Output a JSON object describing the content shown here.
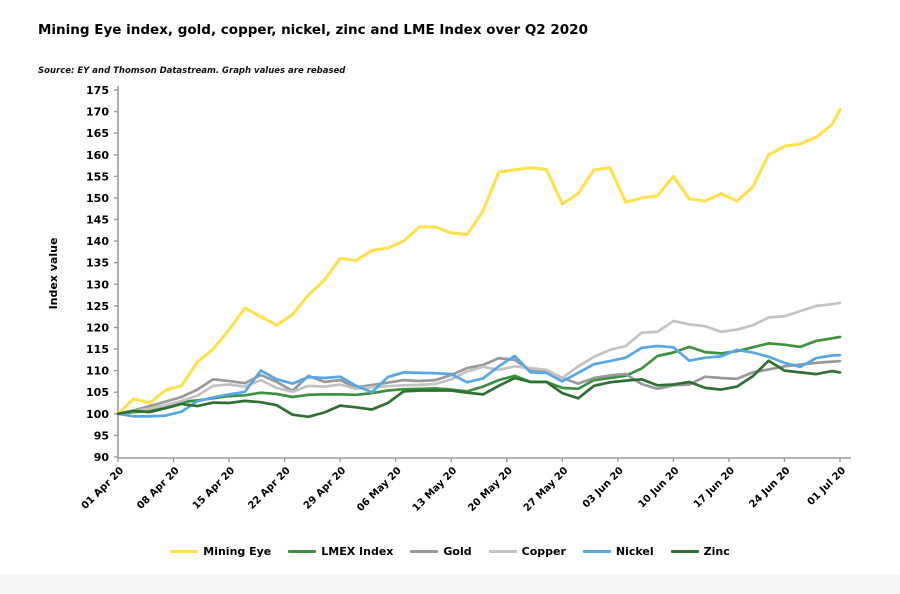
{
  "page": {
    "title": "Mining Eye index, gold, copper, nickel, zinc and LME Index over Q2 2020",
    "source": "Source: EY and Thomson Datastream. Graph values are rebased"
  },
  "chart_data": {
    "type": "line",
    "title": "Mining Eye index, gold, copper, nickel, zinc and LME Index over Q2 2020",
    "xlabel": "",
    "ylabel": "Index value",
    "ylim": [
      90,
      175
    ],
    "ytick_step": 5,
    "grid": false,
    "legend_position": "bottom",
    "axis_color": "#9b9b9b",
    "x_unit": "days since 01 Apr 20",
    "x": [
      0,
      2,
      4,
      6,
      8,
      10,
      12,
      14,
      16,
      18,
      20,
      22,
      24,
      26,
      28,
      30,
      32,
      34,
      36,
      38,
      40,
      42,
      44,
      46,
      48,
      50,
      52,
      54,
      56,
      58,
      60,
      62,
      64,
      66,
      68,
      70,
      72,
      74,
      76,
      78,
      80,
      82,
      84,
      86,
      88,
      90,
      91
    ],
    "xtick_days": [
      0,
      7,
      14,
      21,
      28,
      35,
      42,
      49,
      56,
      63,
      70,
      77,
      84,
      91
    ],
    "xtick_labels": [
      "01 Apr 20",
      "08 Apr 20",
      "15 Apr 20",
      "22 Apr 20",
      "29 Apr 20",
      "06 May 20",
      "13 May 20",
      "20 May 20",
      "27 May 20",
      "03 Jun 20",
      "10 Jun 20",
      "17 Jun 20",
      "24 Jun 20",
      "01 Jul 20"
    ],
    "series": [
      {
        "name": "Mining Eye",
        "color": "#ffe14d",
        "values": [
          100,
          103.5,
          102.5,
          105.5,
          106.5,
          112,
          115,
          119.5,
          124.5,
          122.5,
          120.5,
          123,
          127.5,
          131,
          136,
          135.5,
          137.8,
          138.4,
          140,
          143.3,
          143.3,
          141.9,
          141.5,
          147,
          156,
          156.5,
          157,
          156.6,
          148.6,
          151,
          156.5,
          157,
          149,
          150,
          150.5,
          155,
          149.8,
          149.3,
          151,
          149.3,
          152.5,
          160,
          162,
          162.5,
          164.1,
          167,
          170.5
        ]
      },
      {
        "name": "LMEX Index",
        "color": "#3f9142",
        "values": [
          100,
          100.4,
          100.6,
          101.5,
          102.7,
          103.1,
          103.6,
          104.1,
          104.3,
          104.9,
          104.6,
          103.9,
          104.4,
          104.5,
          104.5,
          104.4,
          104.8,
          105.4,
          105.7,
          105.8,
          105.9,
          105.6,
          105.2,
          106.3,
          107.8,
          108.8,
          107.4,
          107.4,
          106,
          105.8,
          107.8,
          108.3,
          108.8,
          110.5,
          113.4,
          114.2,
          115.5,
          114.3,
          114,
          114.5,
          115.4,
          116.3,
          116,
          115.5,
          116.9,
          117.5,
          117.8
        ]
      },
      {
        "name": "Gold",
        "color": "#999999",
        "values": [
          100,
          100.8,
          101.8,
          102.8,
          103.9,
          105.6,
          108,
          107.6,
          107.1,
          109,
          107.4,
          105.3,
          108.8,
          107.4,
          107.8,
          106.1,
          106.7,
          107.2,
          107.8,
          107.6,
          107.8,
          109,
          110.6,
          111.3,
          112.9,
          112.5,
          110,
          110.1,
          108.3,
          107,
          108.3,
          108.9,
          109.2,
          106.9,
          105.8,
          106.6,
          106.8,
          108.6,
          108.3,
          108.1,
          109.6,
          110.3,
          111,
          111.4,
          111.8,
          112.1,
          112.2
        ]
      },
      {
        "name": "Copper",
        "color": "#c3c3c3",
        "values": [
          100,
          100.6,
          101.2,
          102,
          103,
          104.2,
          106.5,
          106.8,
          106.3,
          107.8,
          106,
          105.1,
          106.5,
          106.3,
          106.8,
          105.8,
          106.2,
          106.4,
          106.6,
          106.7,
          106.9,
          108,
          109.8,
          110.9,
          110.2,
          111,
          110.6,
          110.2,
          108.3,
          111,
          113.2,
          114.8,
          115.7,
          118.8,
          119,
          121.5,
          120.7,
          120.3,
          119,
          119.5,
          120.5,
          122.3,
          122.6,
          123.8,
          125,
          125.4,
          125.7
        ]
      },
      {
        "name": "Nickel",
        "color": "#55a7e8",
        "values": [
          100,
          99.4,
          99.4,
          99.6,
          100.5,
          102.9,
          103.8,
          104.5,
          105.1,
          110,
          108,
          107,
          108.5,
          108.3,
          108.6,
          106.5,
          105,
          108.5,
          109.6,
          109.5,
          109.4,
          109.2,
          107.3,
          108.2,
          111,
          113.4,
          109.6,
          109.5,
          107.5,
          109.5,
          111.5,
          112.2,
          113,
          115.3,
          115.7,
          115.4,
          112.3,
          113,
          113.3,
          114.8,
          114.2,
          113.2,
          111.8,
          110.9,
          112.9,
          113.5,
          113.6
        ]
      },
      {
        "name": "Zinc",
        "color": "#2e7031",
        "values": [
          100,
          100.7,
          100.4,
          101.3,
          102.3,
          101.8,
          102.6,
          102.5,
          103,
          102.7,
          102,
          99.8,
          99.3,
          100.3,
          101.9,
          101.5,
          101,
          102.5,
          105.2,
          105.4,
          105.4,
          105.4,
          104.9,
          104.5,
          106.5,
          108.3,
          107.4,
          107.4,
          104.8,
          103.6,
          106.5,
          107.3,
          107.7,
          108,
          106.6,
          106.8,
          107.4,
          106,
          105.6,
          106.3,
          108.7,
          112.3,
          110,
          109.6,
          109.2,
          109.9,
          109.6
        ]
      }
    ]
  }
}
